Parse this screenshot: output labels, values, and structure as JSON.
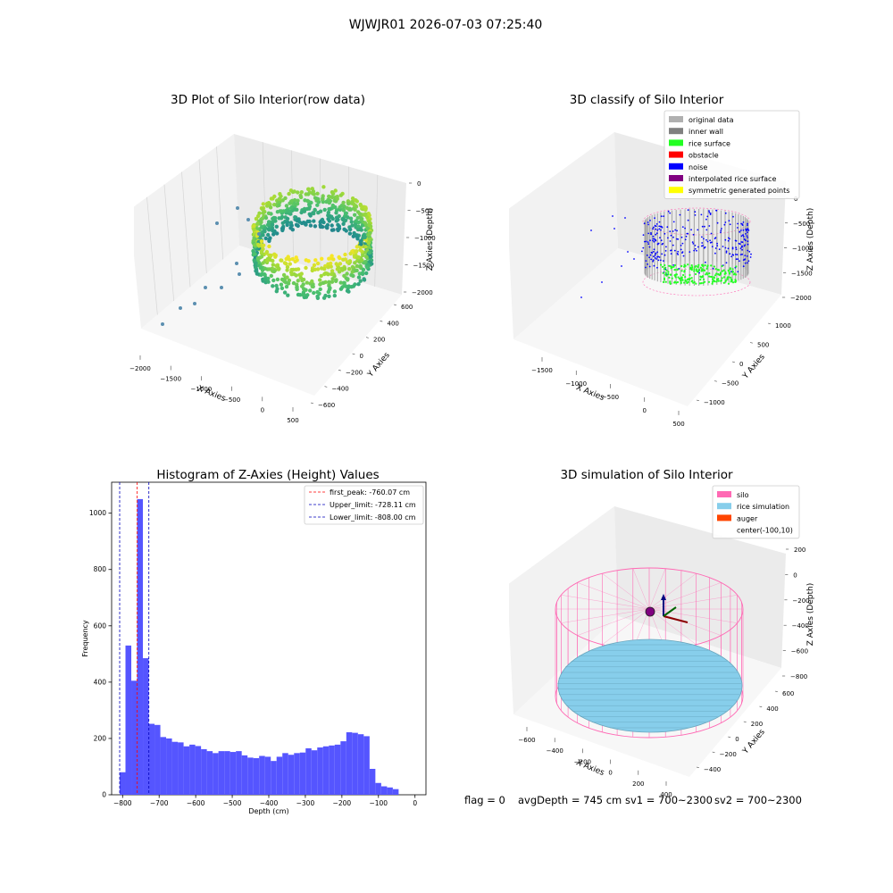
{
  "figure": {
    "suptitle": "WJWJR01 2026-07-03 07:25:40",
    "footer": {
      "flag": "flag = 0",
      "avg_depth": "avgDepth = 745 cm",
      "sv1": "sv1 = 700~2300",
      "sv2": "sv2 = 700~2300"
    }
  },
  "colors": {
    "hist_bar": "#5555ff",
    "first_peak": "#ff0000",
    "limits": "#0000bb",
    "original_data": "#b0b0b0",
    "inner_wall": "#808080",
    "rice_surface": "#22ff22",
    "obstacle": "#ff0000",
    "noise": "#0000ff",
    "interpolated_rice_surface": "#800080",
    "symmetric_generated_points": "#ffff00",
    "silo": "#ff69b4",
    "rice_simulation": "#87ceeb",
    "auger": "#ff4500"
  },
  "chart_data": [
    {
      "type": "scatter",
      "projection": "3d",
      "title": "3D Plot of Silo Interior(row data)",
      "xlabel": "X Axies",
      "ylabel": "Y Axies",
      "zlabel": "Z Axies (Depth)",
      "xticks": [
        "−2000",
        "−1500",
        "−1000",
        "−500",
        "0",
        "500"
      ],
      "yticks": [
        "−600",
        "−400",
        "−200",
        "0",
        "200",
        "400",
        "600"
      ],
      "zticks": [
        "0",
        "−500",
        "−1000",
        "−1500",
        "−2000"
      ],
      "colormap": "viridis"
    },
    {
      "type": "scatter",
      "projection": "3d",
      "title": "3D classify of Silo Interior",
      "xlabel": "X Axies",
      "ylabel": "Y Axies",
      "zlabel": "Z Axies (Depth)",
      "xticks": [
        "−1500",
        "−1000",
        "−500",
        "0",
        "500"
      ],
      "yticks": [
        "−1000",
        "−500",
        "0",
        "500",
        "1000"
      ],
      "zticks": [
        "0",
        "−500",
        "−1000",
        "−1500",
        "−2000"
      ],
      "legend_position": "top-right",
      "legend": [
        {
          "label": "original data",
          "color_key": "original_data"
        },
        {
          "label": "inner wall",
          "color_key": "inner_wall"
        },
        {
          "label": "rice surface",
          "color_key": "rice_surface"
        },
        {
          "label": "obstacle",
          "color_key": "obstacle"
        },
        {
          "label": "noise",
          "color_key": "noise"
        },
        {
          "label": "interpolated rice surface",
          "color_key": "interpolated_rice_surface"
        },
        {
          "label": "symmetric generated points",
          "color_key": "symmetric_generated_points"
        }
      ]
    },
    {
      "type": "bar",
      "title": "Histogram of Z-Axies (Height) Values",
      "xlabel": "Depth (cm)",
      "ylabel": "Frequency",
      "xlim": [
        -830,
        30
      ],
      "ylim": [
        0,
        1110
      ],
      "xticks": [
        -800,
        -700,
        -600,
        -500,
        -400,
        -300,
        -200,
        -100,
        0
      ],
      "yticks": [
        0,
        200,
        400,
        600,
        800,
        1000
      ],
      "bin_edges_start": -808,
      "bin_width": 15.9,
      "values": [
        80,
        530,
        405,
        1050,
        485,
        252,
        248,
        205,
        200,
        188,
        186,
        172,
        178,
        173,
        162,
        155,
        148,
        155,
        155,
        152,
        155,
        140,
        132,
        130,
        138,
        135,
        120,
        135,
        148,
        142,
        148,
        150,
        165,
        158,
        168,
        172,
        175,
        178,
        190,
        222,
        220,
        215,
        208,
        92,
        42,
        30,
        26,
        20
      ],
      "lines": [
        {
          "label": "first_peak: -760.07 cm",
          "x": -760.07,
          "color_key": "first_peak"
        },
        {
          "label": "Upper_limit: -728.11 cm",
          "x": -728.11,
          "color_key": "limits"
        },
        {
          "label": "Lower_limit: -808.00 cm",
          "x": -808.0,
          "color_key": "limits"
        }
      ],
      "legend_position": "top-right"
    },
    {
      "type": "scatter",
      "projection": "3d",
      "title": "3D simulation of Silo Interior",
      "xlabel": "X Axies",
      "ylabel": "Y Axies",
      "zlabel": "Z Axies (Depth)",
      "xticks": [
        "−600",
        "−400",
        "−200",
        "0",
        "200",
        "400"
      ],
      "yticks": [
        "−400",
        "−200",
        "0",
        "200",
        "400",
        "600"
      ],
      "zticks": [
        "200",
        "0",
        "−200",
        "−400",
        "−600",
        "−800"
      ],
      "legend_position": "top-right",
      "legend": [
        {
          "label": "silo",
          "color_key": "silo"
        },
        {
          "label": "rice simulation",
          "color_key": "rice_simulation"
        },
        {
          "label": "auger",
          "color_key": "auger"
        },
        {
          "label": "center(-100,10)",
          "color_key": null
        }
      ]
    }
  ]
}
